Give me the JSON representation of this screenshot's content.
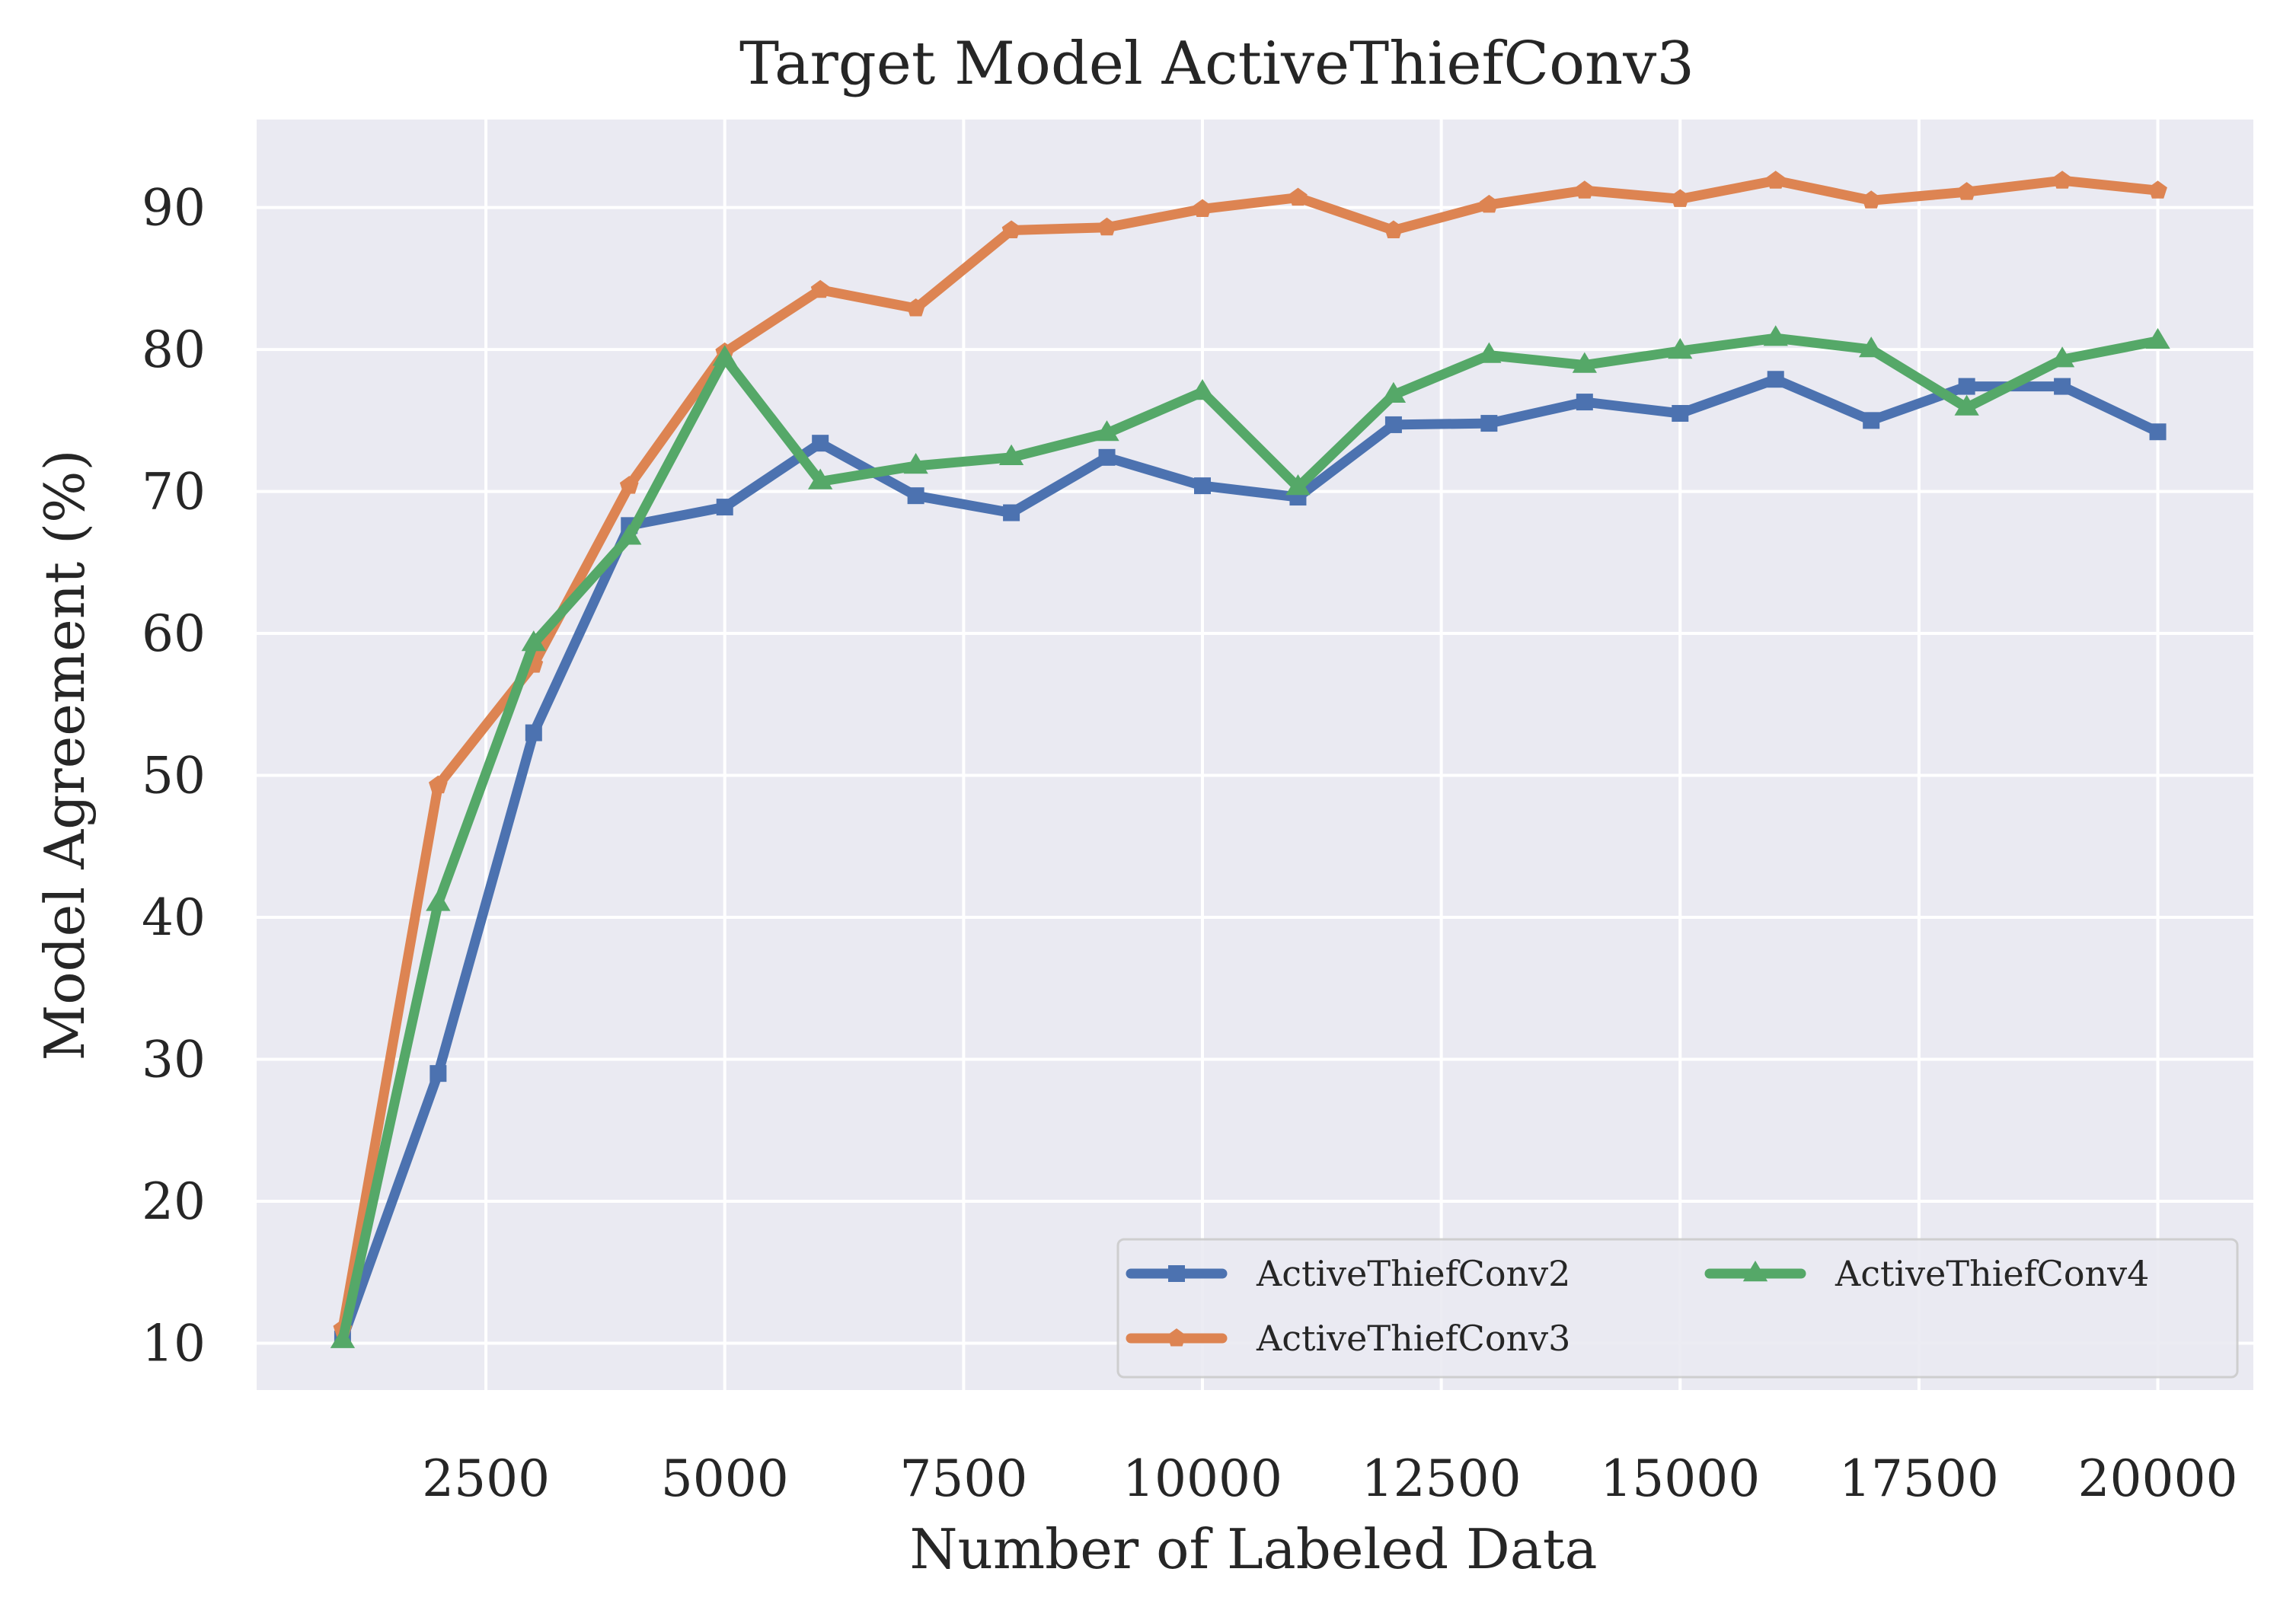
{
  "chart_data": {
    "type": "line",
    "title": "Target Model ActiveThiefConv3",
    "xlabel": "Number of Labeled Data",
    "ylabel": "Model Agreement (%)",
    "xlim": [
      100,
      21000
    ],
    "ylim": [
      6.7,
      96.2
    ],
    "x_ticks": [
      2500,
      5000,
      7500,
      10000,
      12500,
      15000,
      17500,
      20000
    ],
    "y_ticks": [
      10,
      20,
      30,
      40,
      50,
      60,
      70,
      80,
      90
    ],
    "grid": true,
    "legend": {
      "position": "lower-right",
      "columns": 2
    },
    "x": [
      1000,
      2000,
      3000,
      4000,
      5000,
      6000,
      7000,
      8000,
      9000,
      10000,
      11000,
      12000,
      13000,
      14000,
      15000,
      16000,
      17000,
      18000,
      19000,
      20000
    ],
    "series": [
      {
        "name": "ActiveThiefConv2",
        "color": "#4c72b0",
        "marker": "square",
        "values": [
          10.3,
          29.0,
          53.0,
          67.6,
          68.9,
          73.4,
          69.7,
          68.5,
          72.4,
          70.4,
          69.6,
          74.7,
          74.8,
          76.3,
          75.5,
          77.9,
          75.0,
          77.4,
          77.4,
          74.2
        ]
      },
      {
        "name": "ActiveThiefConv3",
        "color": "#dd8452",
        "marker": "pentagon",
        "values": [
          11.0,
          49.3,
          57.8,
          70.4,
          79.8,
          84.2,
          82.9,
          88.4,
          88.6,
          89.9,
          90.7,
          88.4,
          90.2,
          91.2,
          90.6,
          91.9,
          90.5,
          91.1,
          91.9,
          91.2
        ]
      },
      {
        "name": "ActiveThiefConv4",
        "color": "#55a868",
        "marker": "triangle",
        "values": [
          10.2,
          41.0,
          59.3,
          66.8,
          79.4,
          70.7,
          71.8,
          72.4,
          74.1,
          77.0,
          70.3,
          76.8,
          79.6,
          78.9,
          79.9,
          80.8,
          80.0,
          75.9,
          79.3,
          80.6
        ]
      }
    ]
  }
}
